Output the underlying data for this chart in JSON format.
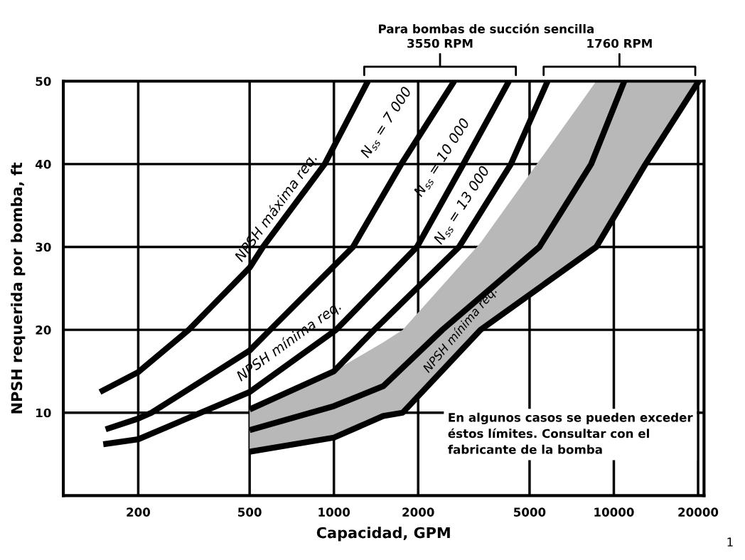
{
  "chart_data": {
    "type": "line",
    "xlabel": "Capacidad, GPM",
    "ylabel": "NPSH requerida por bomba, ft",
    "log": "x",
    "xlim": [
      108,
      21000
    ],
    "ylim": [
      0,
      50
    ],
    "xticks": [
      200,
      500,
      1000,
      2000,
      5000,
      10000,
      20000
    ],
    "yticks": [
      10,
      20,
      30,
      40,
      50
    ],
    "grid": true,
    "line_style": "solid",
    "series": [
      {
        "color": "#000000",
        "x": [
          146,
          200,
          303,
          500,
          558,
          927,
          1323
        ],
        "values": [
          12.5,
          14.9,
          20,
          27.5,
          30,
          40,
          50
        ]
      },
      {
        "color": "#000000",
        "x": [
          153,
          200,
          223,
          500,
          592,
          1170,
          1740,
          2690
        ],
        "values": [
          8.0,
          9.3,
          10,
          17.5,
          20,
          30,
          40,
          50
        ]
      },
      {
        "color": "#000000",
        "x": [
          150,
          200,
          500,
          1018,
          1980,
          2900,
          4220
        ],
        "values": [
          6.2,
          6.8,
          12.5,
          20,
          30,
          40,
          50
        ]
      },
      {
        "color": "#000000",
        "x": [
          500,
          1000,
          1394,
          2800,
          4290,
          5800
        ],
        "values": [
          10.4,
          15,
          20,
          30,
          40,
          50
        ]
      },
      {
        "color": "#000000",
        "x": [
          500,
          1000,
          1500,
          2440,
          5420,
          8300,
          10900
        ],
        "values": [
          7.9,
          10.8,
          13.2,
          20,
          30,
          40,
          50
        ]
      },
      {
        "color": "#000000",
        "x": [
          500,
          1000,
          1500,
          1760,
          3340,
          8650,
          12980,
          20100
        ],
        "values": [
          5.3,
          7.0,
          9.6,
          10,
          20,
          30,
          40,
          50
        ],
        "lower": [
          5.3,
          7.0,
          9.6,
          10,
          20,
          30,
          40,
          50
        ],
        "upper": [
          10.4,
          15,
          18.5,
          20,
          30.5,
          50,
          50,
          50
        ]
      }
    ],
    "annotations": [
      "NPSH máxima req.",
      "N$_{ss}$ = 7 000",
      "N$_{ss}$ = 10 000",
      "N$_{ss}$ = 13 000",
      "NPSH mínima req.",
      "NPSH mínima req.",
      "Para bombas de succión sencilla",
      "3550 RPM",
      "1760 RPM",
      "En algunos casos se pueden exceder\néstos límites. Consultar con el\nfabricante de la bomba",
      "1"
    ]
  }
}
